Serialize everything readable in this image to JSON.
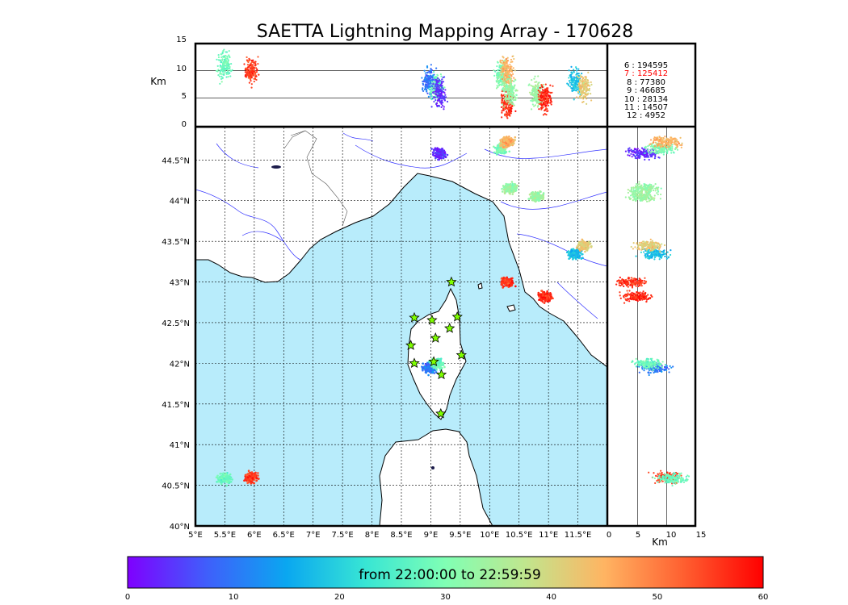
{
  "chart_data": {
    "type": "scatter",
    "title": "SAETTA Lightning Mapping Array - 170628",
    "colorbar": {
      "label": "from 22:00:00 to 22:59:59",
      "range": [
        0,
        60
      ],
      "ticks": [
        "0",
        "10",
        "20",
        "30",
        "40",
        "50",
        "60"
      ],
      "colors": [
        "#7f00ff",
        "#3f5ffb",
        "#0aa7f0",
        "#38e6d4",
        "#80ffb4",
        "#c0e68e",
        "#ffb462",
        "#ff5f30",
        "#ff0000"
      ]
    },
    "map": {
      "lon_range": [
        5.0,
        12.0
      ],
      "lat_range": [
        40.0,
        44.9
      ],
      "lon_ticks": [
        "5°E",
        "5.5°E",
        "6°E",
        "6.5°E",
        "7°E",
        "7.5°E",
        "8°E",
        "8.5°E",
        "9°E",
        "9.5°E",
        "10°E",
        "10.5°E",
        "11°E",
        "11.5°E"
      ],
      "lat_ticks": [
        "40°N",
        "40.5°N",
        "41°N",
        "41.5°N",
        "42°N",
        "42.5°N",
        "43°N",
        "43.5°N",
        "44°N",
        "44.5°N"
      ],
      "sea_color": "#b8ecfb",
      "stations": [
        {
          "lon": 9.35,
          "lat": 43.0
        },
        {
          "lon": 8.72,
          "lat": 42.56
        },
        {
          "lon": 9.02,
          "lat": 42.53
        },
        {
          "lon": 9.45,
          "lat": 42.57
        },
        {
          "lon": 9.08,
          "lat": 42.31
        },
        {
          "lon": 9.32,
          "lat": 42.43
        },
        {
          "lon": 8.66,
          "lat": 42.22
        },
        {
          "lon": 9.52,
          "lat": 42.1
        },
        {
          "lon": 8.72,
          "lat": 42.0
        },
        {
          "lon": 9.05,
          "lat": 42.02
        },
        {
          "lon": 9.18,
          "lat": 41.86
        },
        {
          "lon": 9.17,
          "lat": 41.38
        }
      ]
    },
    "altitude_panels": {
      "unit_label": "Km",
      "range": [
        0,
        15
      ],
      "ticks": [
        "0",
        "5",
        "10",
        "15"
      ]
    },
    "clusters": [
      {
        "lon": 8.97,
        "lat": 41.94,
        "t": 10,
        "alt": 8
      },
      {
        "lon": 9.1,
        "lat": 41.99,
        "t": 28,
        "alt": 7
      },
      {
        "lon": 9.15,
        "lat": 44.58,
        "t": 4,
        "alt": 6
      },
      {
        "lon": 10.2,
        "lat": 44.64,
        "t": 30,
        "alt": 9
      },
      {
        "lon": 10.3,
        "lat": 44.72,
        "t": 45,
        "alt": 10
      },
      {
        "lon": 10.3,
        "lat": 43.0,
        "t": 56,
        "alt": 4
      },
      {
        "lon": 10.35,
        "lat": 44.15,
        "t": 33,
        "alt": 6
      },
      {
        "lon": 10.8,
        "lat": 44.05,
        "t": 33,
        "alt": 6
      },
      {
        "lon": 10.95,
        "lat": 42.82,
        "t": 57,
        "alt": 5
      },
      {
        "lon": 11.45,
        "lat": 43.35,
        "t": 18,
        "alt": 8
      },
      {
        "lon": 11.6,
        "lat": 43.45,
        "t": 42,
        "alt": 7
      },
      {
        "lon": 5.95,
        "lat": 40.6,
        "t": 55,
        "alt": 10
      },
      {
        "lon": 5.5,
        "lat": 40.58,
        "t": 28,
        "alt": 11
      }
    ],
    "legend": [
      {
        "label": "6 :   194595",
        "color": "#000000"
      },
      {
        "label": "7 :   125412",
        "color": "#ff0000"
      },
      {
        "label": "8 :    77380",
        "color": "#000000"
      },
      {
        "label": "9 :    46685",
        "color": "#000000"
      },
      {
        "label": "10 :    28134",
        "color": "#000000"
      },
      {
        "label": "11 :    14507",
        "color": "#000000"
      },
      {
        "label": "12 :     4952",
        "color": "#000000"
      }
    ]
  }
}
